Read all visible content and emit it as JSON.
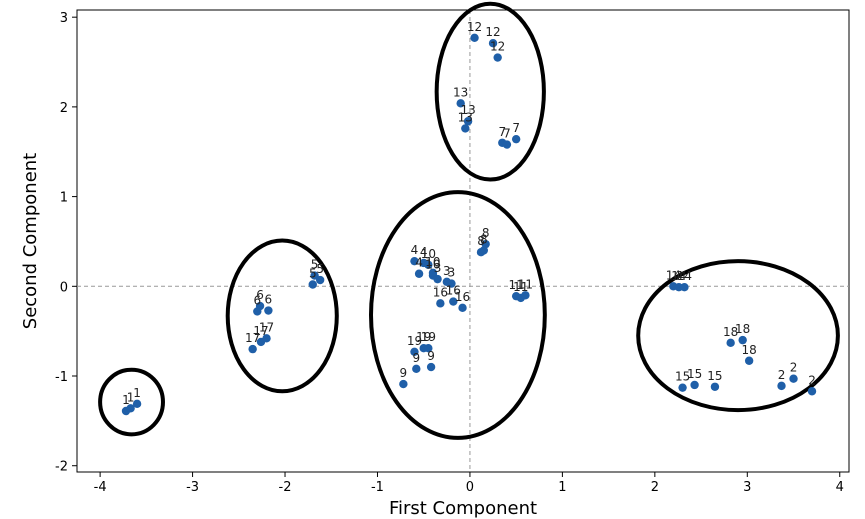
{
  "chart_data": {
    "type": "scatter",
    "title": "",
    "xlabel": "First Component",
    "ylabel": "Second Component",
    "xlim": [
      -4.25,
      4.1
    ],
    "ylim": [
      -2.07,
      3.08
    ],
    "xticks": [
      -4,
      -3,
      -2,
      -1,
      0,
      1,
      2,
      3,
      4
    ],
    "yticks": [
      -2,
      -1,
      0,
      1,
      2,
      3
    ],
    "grid": false,
    "reference_lines": {
      "x": 0,
      "y": 0
    },
    "marker_color": "#1f5fa8",
    "points": [
      {
        "x": 0.05,
        "y": 2.77,
        "label": "12"
      },
      {
        "x": 0.25,
        "y": 2.71,
        "label": "12"
      },
      {
        "x": 0.3,
        "y": 2.55,
        "label": "12"
      },
      {
        "x": -0.1,
        "y": 2.04,
        "label": "13"
      },
      {
        "x": -0.02,
        "y": 1.84,
        "label": "13"
      },
      {
        "x": -0.05,
        "y": 1.76,
        "label": "13"
      },
      {
        "x": 0.35,
        "y": 1.6,
        "label": "7"
      },
      {
        "x": 0.4,
        "y": 1.58,
        "label": "7"
      },
      {
        "x": 0.5,
        "y": 1.64,
        "label": "7"
      },
      {
        "x": 0.17,
        "y": 0.47,
        "label": "8"
      },
      {
        "x": 0.12,
        "y": 0.38,
        "label": "8"
      },
      {
        "x": 0.15,
        "y": 0.4,
        "label": "8"
      },
      {
        "x": -0.6,
        "y": 0.28,
        "label": "4"
      },
      {
        "x": -0.5,
        "y": 0.26,
        "label": "4"
      },
      {
        "x": -0.55,
        "y": 0.14,
        "label": "4"
      },
      {
        "x": -0.4,
        "y": 0.12,
        "label": "10"
      },
      {
        "x": -0.45,
        "y": 0.24,
        "label": "10"
      },
      {
        "x": -0.4,
        "y": 0.15,
        "label": "10"
      },
      {
        "x": -0.35,
        "y": 0.08,
        "label": "3"
      },
      {
        "x": -0.25,
        "y": 0.05,
        "label": "3"
      },
      {
        "x": -0.2,
        "y": 0.03,
        "label": "3"
      },
      {
        "x": -0.32,
        "y": -0.19,
        "label": "16"
      },
      {
        "x": -0.18,
        "y": -0.17,
        "label": "16"
      },
      {
        "x": -0.08,
        "y": -0.24,
        "label": "16"
      },
      {
        "x": 0.5,
        "y": -0.11,
        "label": "11"
      },
      {
        "x": 0.55,
        "y": -0.13,
        "label": "11"
      },
      {
        "x": 0.6,
        "y": -0.1,
        "label": "11"
      },
      {
        "x": -0.6,
        "y": -0.73,
        "label": "19"
      },
      {
        "x": -0.5,
        "y": -0.69,
        "label": "19"
      },
      {
        "x": -0.45,
        "y": -0.69,
        "label": "19"
      },
      {
        "x": -0.58,
        "y": -0.92,
        "label": "9"
      },
      {
        "x": -0.42,
        "y": -0.9,
        "label": "9"
      },
      {
        "x": -0.72,
        "y": -1.09,
        "label": "9"
      },
      {
        "x": -1.7,
        "y": 0.02,
        "label": "5"
      },
      {
        "x": -1.68,
        "y": 0.12,
        "label": "5"
      },
      {
        "x": -1.62,
        "y": 0.07,
        "label": "5"
      },
      {
        "x": -2.3,
        "y": -0.28,
        "label": "6"
      },
      {
        "x": -2.27,
        "y": -0.22,
        "label": "6"
      },
      {
        "x": -2.18,
        "y": -0.27,
        "label": "6"
      },
      {
        "x": -2.35,
        "y": -0.7,
        "label": "17"
      },
      {
        "x": -2.26,
        "y": -0.62,
        "label": "17"
      },
      {
        "x": -2.2,
        "y": -0.58,
        "label": "17"
      },
      {
        "x": -3.72,
        "y": -1.39,
        "label": "1"
      },
      {
        "x": -3.67,
        "y": -1.36,
        "label": "1"
      },
      {
        "x": -3.6,
        "y": -1.31,
        "label": "1"
      },
      {
        "x": 2.2,
        "y": 0.0,
        "label": "14"
      },
      {
        "x": 2.26,
        "y": -0.01,
        "label": "14"
      },
      {
        "x": 2.32,
        "y": -0.01,
        "label": "14"
      },
      {
        "x": 2.82,
        "y": -0.63,
        "label": "18"
      },
      {
        "x": 2.95,
        "y": -0.6,
        "label": "18"
      },
      {
        "x": 3.02,
        "y": -0.83,
        "label": "18"
      },
      {
        "x": 2.3,
        "y": -1.13,
        "label": "15"
      },
      {
        "x": 2.43,
        "y": -1.1,
        "label": "15"
      },
      {
        "x": 2.65,
        "y": -1.12,
        "label": "15"
      },
      {
        "x": 3.37,
        "y": -1.11,
        "label": "2"
      },
      {
        "x": 3.5,
        "y": -1.03,
        "label": "2"
      },
      {
        "x": 3.7,
        "y": -1.17,
        "label": "2"
      }
    ],
    "cluster_outlines": [
      {
        "cx": 0.22,
        "cy": 2.17,
        "rx": 0.58,
        "ry": 0.98
      },
      {
        "cx": -0.13,
        "cy": -0.32,
        "rx": 0.94,
        "ry": 1.37
      },
      {
        "cx": -2.03,
        "cy": -0.33,
        "rx": 0.59,
        "ry": 0.84
      },
      {
        "cx": -3.66,
        "cy": -1.29,
        "rx": 0.34,
        "ry": 0.36
      },
      {
        "cx": 2.9,
        "cy": -0.55,
        "rx": 1.08,
        "ry": 0.83
      }
    ]
  }
}
